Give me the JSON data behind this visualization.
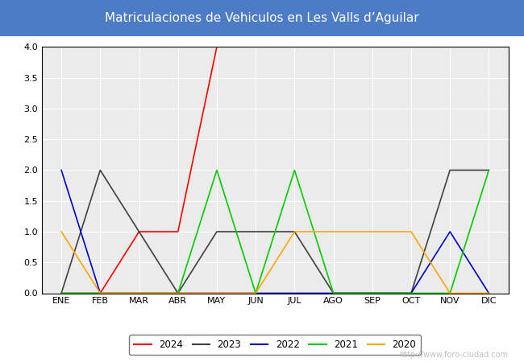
{
  "title": "Matriculaciones de Vehiculos en Les Valls d’Aguilar",
  "title_bg_color": "#4d7cc7",
  "title_text_color": "#ffffff",
  "months": [
    "ENE",
    "FEB",
    "MAR",
    "ABR",
    "MAY",
    "JUN",
    "JUL",
    "AGO",
    "SEP",
    "OCT",
    "NOV",
    "DIC"
  ],
  "month_indices": [
    1,
    2,
    3,
    4,
    5,
    6,
    7,
    8,
    9,
    10,
    11,
    12
  ],
  "ylim": [
    0.0,
    4.0
  ],
  "yticks": [
    0.0,
    0.5,
    1.0,
    1.5,
    2.0,
    2.5,
    3.0,
    3.5,
    4.0
  ],
  "series": {
    "2024": {
      "color": "#ff0000",
      "data": [
        0,
        0,
        1,
        1,
        4,
        null,
        null,
        null,
        null,
        null,
        null,
        null
      ]
    },
    "2023": {
      "color": "#404040",
      "data": [
        0,
        2,
        1,
        0,
        1,
        1,
        1,
        0,
        0,
        0,
        2,
        2
      ]
    },
    "2022": {
      "color": "#0000cd",
      "data": [
        2,
        0,
        0,
        0,
        0,
        0,
        0,
        0,
        0,
        0,
        1,
        0
      ]
    },
    "2021": {
      "color": "#00cc00",
      "data": [
        0,
        0,
        0,
        0,
        2,
        0,
        2,
        0,
        0,
        0,
        0,
        2
      ]
    },
    "2020": {
      "color": "#ffa500",
      "data": [
        1,
        0,
        0,
        0,
        0,
        0,
        1,
        1,
        1,
        1,
        0,
        0
      ]
    }
  },
  "plot_bg_color": "#ebebeb",
  "grid_color": "#ffffff",
  "watermark_text": "http://www.foro-ciudad.com",
  "watermark_color": "#c0c0c0",
  "legend_order": [
    "2024",
    "2023",
    "2022",
    "2021",
    "2020"
  ],
  "fig_width": 6.5,
  "fig_height": 4.5,
  "fig_dpi": 100
}
